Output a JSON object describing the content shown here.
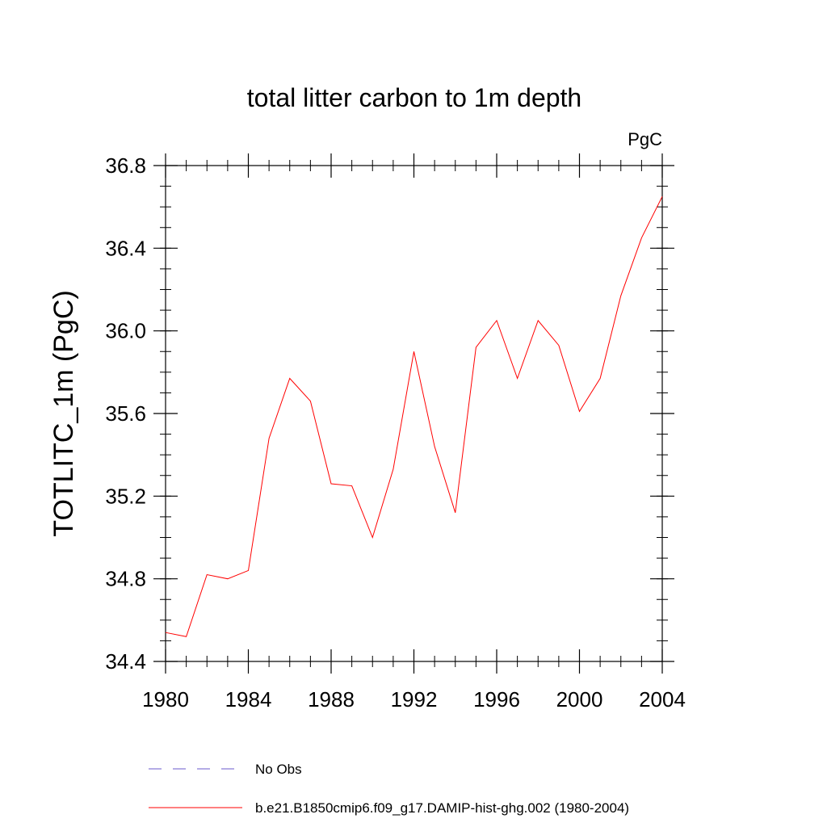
{
  "chart_data": {
    "type": "line",
    "title": "total litter carbon to 1m depth",
    "units_label": "PgC",
    "ylabel": "TOTLITC_1m  (PgC)",
    "xlabel": "",
    "xlim": [
      1980,
      2004
    ],
    "ylim": [
      34.4,
      36.8
    ],
    "x_ticks": [
      1980,
      1984,
      1988,
      1992,
      1996,
      2000,
      2004
    ],
    "x_tick_labels": [
      "1980",
      "1984",
      "1988",
      "1992",
      "1996",
      "2000",
      "2004"
    ],
    "y_ticks": [
      34.4,
      34.8,
      35.2,
      35.6,
      36.0,
      36.4,
      36.8
    ],
    "y_tick_labels": [
      "34.4",
      "34.8",
      "35.2",
      "35.6",
      "36.0",
      "36.4",
      "36.8"
    ],
    "grid": false,
    "legend_position": "bottom",
    "x": [
      1980,
      1981,
      1982,
      1983,
      1984,
      1985,
      1986,
      1987,
      1988,
      1989,
      1990,
      1991,
      1992,
      1993,
      1994,
      1995,
      1996,
      1997,
      1998,
      1999,
      2000,
      2001,
      2002,
      2003,
      2004
    ],
    "series": [
      {
        "name": "b.e21.B1850cmip6.f09_g17.DAMIP-hist-ghg.002 (1980-2004)",
        "color": "#ff0000",
        "style": "solid",
        "values": [
          34.54,
          34.52,
          34.82,
          34.8,
          34.84,
          35.48,
          35.77,
          35.66,
          35.26,
          35.25,
          35.0,
          35.33,
          35.9,
          35.44,
          35.12,
          35.92,
          36.05,
          35.77,
          36.05,
          35.93,
          35.61,
          35.77,
          36.17,
          36.45,
          36.65
        ]
      }
    ],
    "legend": [
      {
        "label": "No Obs",
        "color": "#6a5acd",
        "style": "dashed"
      },
      {
        "label": "b.e21.B1850cmip6.f09_g17.DAMIP-hist-ghg.002 (1980-2004)",
        "color": "#ff0000",
        "style": "solid"
      }
    ]
  }
}
